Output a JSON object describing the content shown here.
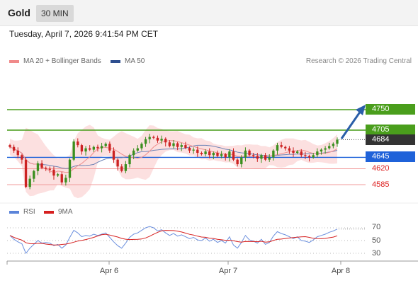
{
  "header": {
    "title": "Gold",
    "timeframe": "30 MIN"
  },
  "datetime": "Tuesday, April 7, 2026 9:41:54 PM CET",
  "legend": {
    "ma_bb": {
      "label": "MA 20 + Bollinger Bands",
      "color": "#f08a8a"
    },
    "ma50": {
      "label": "MA 50",
      "color": "#2d4e8f"
    }
  },
  "credit": "Research © 2026 Trading Central",
  "price_levels": [
    {
      "value": "4750",
      "kind": "resistance",
      "color": "#4a9e1c"
    },
    {
      "value": "4705",
      "kind": "resistance",
      "color": "#4a9e1c"
    },
    {
      "value": "4684",
      "kind": "current",
      "color": "#333333"
    },
    {
      "value": "4645",
      "kind": "pivot",
      "color": "#1f62d9"
    },
    {
      "value": "4620",
      "kind": "support",
      "color": "#d22222"
    },
    {
      "value": "4585",
      "kind": "support",
      "color": "#d22222"
    }
  ],
  "rsi_legend": {
    "rsi": {
      "label": "RSI",
      "color": "#5b84d9"
    },
    "ma9": {
      "label": "9MA",
      "color": "#d62020"
    }
  },
  "rsi_ticks": [
    "70",
    "50",
    "30"
  ],
  "x_axis": {
    "labels": [
      "Apr 6",
      "Apr 7",
      "Apr 8"
    ]
  },
  "chart_data": {
    "type": "candlestick",
    "close_series": [
      4668,
      4660,
      4650,
      4640,
      4580,
      4598,
      4615,
      4632,
      4622,
      4620,
      4618,
      4605,
      4608,
      4590,
      4600,
      4640,
      4680,
      4672,
      4658,
      4665,
      4662,
      4668,
      4665,
      4670,
      4675,
      4660,
      4640,
      4625,
      4615,
      4630,
      4650,
      4660,
      4665,
      4675,
      4685,
      4690,
      4688,
      4682,
      4686,
      4678,
      4670,
      4676,
      4668,
      4672,
      4666,
      4660,
      4662,
      4655,
      4652,
      4658,
      4650,
      4655,
      4648,
      4652,
      4645,
      4658,
      4640,
      4630,
      4645,
      4660,
      4650,
      4648,
      4642,
      4650,
      4640,
      4645,
      4660,
      4672,
      4668,
      4665,
      4660,
      4655,
      4658,
      4650,
      4648,
      4645,
      4650,
      4658,
      4662,
      4665,
      4670,
      4675,
      4684
    ],
    "rsi_series": [
      58,
      52,
      48,
      45,
      30,
      38,
      44,
      50,
      46,
      47,
      46,
      42,
      44,
      38,
      43,
      55,
      66,
      62,
      56,
      58,
      57,
      60,
      58,
      60,
      62,
      55,
      48,
      42,
      38,
      46,
      55,
      60,
      62,
      66,
      70,
      72,
      70,
      65,
      67,
      62,
      58,
      61,
      57,
      59,
      56,
      53,
      55,
      51,
      50,
      54,
      49,
      52,
      47,
      50,
      46,
      56,
      43,
      38,
      47,
      58,
      51,
      49,
      46,
      52,
      44,
      47,
      57,
      64,
      61,
      59,
      56,
      53,
      56,
      50,
      49,
      47,
      51,
      56,
      58,
      60,
      63,
      65,
      68
    ],
    "rsi_levels": [
      70,
      50,
      30
    ],
    "ylim": [
      4575,
      4760
    ]
  }
}
